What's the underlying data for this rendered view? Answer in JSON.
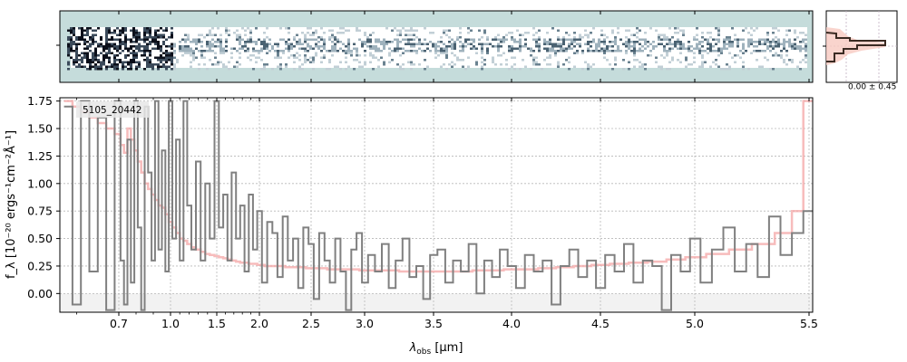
{
  "chart_data": [
    {
      "type": "heatmap",
      "panel": "2d-spectrum",
      "colors": {
        "background": "#c5dcdb",
        "trace_dark": "#111827",
        "trace_mid": "#5a7585"
      },
      "note_shared_x": true
    },
    {
      "type": "line",
      "panel": "1d-spectrum",
      "object_label": "5105_20442",
      "xlabel_main": "λ",
      "xlabel_sub": "obs",
      "xlabel_unit": " [μm]",
      "ylabel": "f_λ [10⁻²⁰ ergs⁻¹cm⁻²Å⁻¹]",
      "x_scale": "nonlinear (prism-resolution spaced)",
      "x_ticks": [
        {
          "value": 0.7,
          "label": "0.7"
        },
        {
          "value": 1.0,
          "label": "1.0"
        },
        {
          "value": 1.5,
          "label": "1.5"
        },
        {
          "value": 2.0,
          "label": "2.0"
        },
        {
          "value": 2.5,
          "label": "2.5"
        },
        {
          "value": 3.0,
          "label": "3.0"
        },
        {
          "value": 3.5,
          "label": "3.5"
        },
        {
          "value": 4.0,
          "label": "4.0"
        },
        {
          "value": 4.5,
          "label": "4.5"
        },
        {
          "value": 5.0,
          "label": "5.0"
        },
        {
          "value": 5.5,
          "label": "5.5"
        }
      ],
      "x_minor_ticks": [
        0.6,
        0.8,
        0.9,
        1.1,
        1.2,
        1.3,
        1.4,
        1.6,
        1.7,
        1.8,
        1.9
      ],
      "xlim": [
        0.56,
        5.52
      ],
      "ylim": [
        -0.17,
        1.78
      ],
      "y_ticks": [
        {
          "value": 0.0,
          "label": "0.00"
        },
        {
          "value": 0.25,
          "label": "0.25"
        },
        {
          "value": 0.5,
          "label": "0.50"
        },
        {
          "value": 0.75,
          "label": "0.75"
        },
        {
          "value": 1.0,
          "label": "1.00"
        },
        {
          "value": 1.25,
          "label": "1.25"
        },
        {
          "value": 1.5,
          "label": "1.50"
        },
        {
          "value": 1.75,
          "label": "1.75"
        }
      ],
      "grid": true,
      "series": [
        {
          "role": "data",
          "color": "#808080",
          "style": "steps",
          "x": [
            0.58,
            0.6,
            0.62,
            0.64,
            0.66,
            0.68,
            0.7,
            0.72,
            0.74,
            0.76,
            0.78,
            0.8,
            0.82,
            0.84,
            0.86,
            0.88,
            0.9,
            0.92,
            0.94,
            0.96,
            0.98,
            1.0,
            1.04,
            1.08,
            1.12,
            1.16,
            1.2,
            1.25,
            1.3,
            1.35,
            1.4,
            1.45,
            1.5,
            1.55,
            1.6,
            1.65,
            1.7,
            1.75,
            1.8,
            1.85,
            1.9,
            1.95,
            2.0,
            2.05,
            2.1,
            2.15,
            2.2,
            2.25,
            2.3,
            2.35,
            2.4,
            2.45,
            2.5,
            2.55,
            2.6,
            2.65,
            2.7,
            2.75,
            2.8,
            2.85,
            2.9,
            2.95,
            3.0,
            3.05,
            3.1,
            3.15,
            3.2,
            3.25,
            3.3,
            3.35,
            3.4,
            3.45,
            3.5,
            3.55,
            3.6,
            3.65,
            3.7,
            3.75,
            3.8,
            3.85,
            3.9,
            3.95,
            4.0,
            4.05,
            4.1,
            4.15,
            4.2,
            4.25,
            4.3,
            4.35,
            4.4,
            4.45,
            4.5,
            4.55,
            4.6,
            4.65,
            4.7,
            4.75,
            4.8,
            4.85,
            4.9,
            4.95,
            5.0,
            5.05,
            5.1,
            5.15,
            5.2,
            5.25,
            5.3,
            5.35,
            5.4,
            5.45,
            5.5
          ],
          "y": [
            1.7,
            -0.1,
            1.75,
            0.2,
            1.6,
            -0.15,
            1.75,
            0.3,
            -0.1,
            1.4,
            0.1,
            1.75,
            0.6,
            -0.15,
            1.7,
            1.1,
            0.3,
            1.75,
            0.4,
            1.3,
            0.2,
            1.75,
            0.5,
            1.4,
            0.3,
            1.75,
            0.8,
            0.4,
            1.2,
            0.3,
            1.0,
            0.5,
            1.75,
            0.6,
            0.9,
            0.3,
            1.1,
            0.5,
            0.8,
            0.2,
            0.9,
            0.4,
            0.75,
            0.1,
            0.65,
            0.55,
            0.15,
            0.7,
            0.3,
            0.5,
            0.05,
            0.6,
            0.45,
            -0.05,
            0.55,
            0.3,
            0.1,
            0.5,
            0.2,
            -0.15,
            0.4,
            0.55,
            0.1,
            0.35,
            0.2,
            0.45,
            0.05,
            0.3,
            0.5,
            0.15,
            0.25,
            -0.05,
            0.35,
            0.4,
            0.1,
            0.3,
            0.2,
            0.45,
            0.0,
            0.3,
            0.15,
            0.4,
            0.25,
            0.05,
            0.35,
            0.2,
            0.3,
            -0.1,
            0.25,
            0.4,
            0.15,
            0.3,
            0.05,
            0.35,
            0.2,
            0.45,
            0.1,
            0.3,
            0.25,
            -0.15,
            0.35,
            0.2,
            0.5,
            0.1,
            0.4,
            0.6,
            0.2,
            0.45,
            0.15,
            0.7,
            0.35,
            0.55,
            0.75
          ]
        },
        {
          "role": "model",
          "color": "#f4a5a5",
          "style": "steps",
          "x": [
            0.58,
            0.6,
            0.62,
            0.64,
            0.66,
            0.68,
            0.7,
            0.72,
            0.74,
            0.76,
            0.78,
            0.8,
            0.82,
            0.84,
            0.86,
            0.88,
            0.9,
            0.92,
            0.94,
            0.96,
            0.98,
            1.0,
            1.04,
            1.08,
            1.12,
            1.16,
            1.2,
            1.25,
            1.3,
            1.35,
            1.4,
            1.45,
            1.5,
            1.55,
            1.6,
            1.65,
            1.7,
            1.75,
            1.8,
            1.85,
            1.9,
            1.95,
            2.0,
            2.1,
            2.2,
            2.3,
            2.4,
            2.5,
            2.6,
            2.7,
            2.8,
            2.9,
            3.0,
            3.1,
            3.2,
            3.3,
            3.4,
            3.5,
            3.6,
            3.7,
            3.8,
            3.9,
            4.0,
            4.1,
            4.2,
            4.3,
            4.4,
            4.5,
            4.6,
            4.7,
            4.8,
            4.9,
            5.0,
            5.1,
            5.2,
            5.3,
            5.4,
            5.45,
            5.5
          ],
          "y": [
            1.75,
            1.7,
            1.65,
            1.6,
            1.55,
            1.5,
            1.45,
            1.35,
            1.28,
            1.5,
            1.4,
            1.3,
            1.2,
            1.1,
            1.0,
            0.95,
            0.9,
            0.85,
            0.8,
            0.78,
            0.72,
            0.65,
            0.6,
            0.55,
            0.5,
            0.48,
            0.45,
            0.42,
            0.4,
            0.38,
            0.36,
            0.35,
            0.34,
            0.33,
            0.32,
            0.31,
            0.3,
            0.29,
            0.28,
            0.28,
            0.27,
            0.27,
            0.26,
            0.25,
            0.25,
            0.24,
            0.24,
            0.23,
            0.23,
            0.22,
            0.22,
            0.22,
            0.21,
            0.21,
            0.21,
            0.2,
            0.2,
            0.2,
            0.2,
            0.2,
            0.21,
            0.21,
            0.22,
            0.22,
            0.23,
            0.24,
            0.25,
            0.26,
            0.27,
            0.28,
            0.29,
            0.31,
            0.33,
            0.36,
            0.4,
            0.45,
            0.55,
            0.75,
            1.75
          ]
        }
      ]
    },
    {
      "type": "line",
      "panel": "spatial-profile",
      "annotation": "0.00 ± 0.45",
      "colors": {
        "fill": "#f8c9c0",
        "line": "#7a5040",
        "line_dark": "#3a2a22",
        "vline": "#c0b0c0"
      }
    }
  ]
}
